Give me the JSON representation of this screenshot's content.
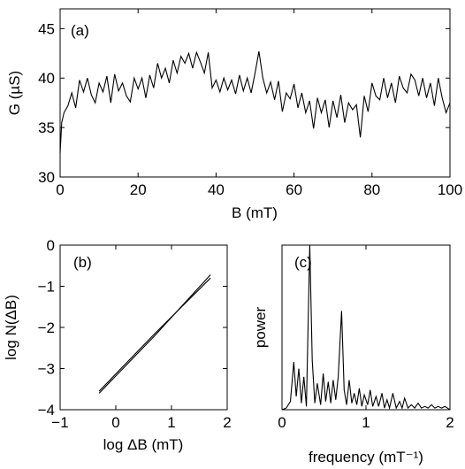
{
  "chart_data": [
    {
      "panel": "(a)",
      "type": "line",
      "xlabel": "B (mT)",
      "ylabel": "G (µS)",
      "xlim": [
        0,
        100
      ],
      "ylim": [
        30,
        47
      ],
      "xticks": [
        "0",
        "20",
        "40",
        "60",
        "80",
        "100"
      ],
      "yticks": [
        "30",
        "35",
        "40",
        "45"
      ],
      "grid": false,
      "series": [
        {
          "x": [
            0,
            0.4,
            1,
            2,
            3,
            4,
            5,
            6,
            7,
            8,
            9,
            10,
            11,
            12,
            13,
            14,
            15,
            16,
            17,
            18,
            19,
            20,
            21,
            22,
            23,
            24,
            25,
            26,
            27,
            28,
            29,
            30,
            31,
            32,
            33,
            34,
            35,
            36,
            37,
            38,
            39,
            40,
            41,
            42,
            43,
            44,
            45,
            46,
            47,
            48,
            49,
            50,
            51,
            52,
            53,
            54,
            55,
            56,
            57,
            58,
            59,
            60,
            61,
            62,
            63,
            64,
            65,
            66,
            67,
            68,
            69,
            70,
            71,
            72,
            73,
            74,
            75,
            76,
            77,
            78,
            79,
            80,
            81,
            82,
            83,
            84,
            85,
            86,
            87,
            88,
            89,
            90,
            91,
            92,
            93,
            94,
            95,
            96,
            97,
            98,
            99,
            100
          ],
          "y": [
            32.4,
            35.5,
            36.5,
            37.2,
            38.5,
            37.0,
            39.8,
            38.6,
            40.0,
            38.3,
            37.5,
            39.5,
            38.6,
            40.2,
            37.5,
            40.4,
            38.7,
            39.5,
            38.2,
            37.6,
            40.0,
            38.9,
            40.0,
            38.0,
            40.3,
            39.0,
            41.5,
            40.0,
            41.0,
            39.5,
            41.8,
            40.5,
            42.2,
            41.5,
            42.5,
            41.0,
            42.6,
            41.6,
            40.5,
            42.6,
            39.0,
            39.8,
            38.6,
            40.0,
            38.8,
            39.8,
            38.4,
            40.3,
            38.7,
            40.0,
            38.5,
            40.5,
            42.7,
            40.0,
            38.5,
            39.6,
            37.8,
            39.7,
            36.6,
            38.5,
            37.9,
            39.4,
            37.0,
            38.5,
            36.5,
            37.7,
            34.9,
            38.0,
            36.5,
            37.8,
            35.0,
            37.7,
            36.0,
            38.3,
            35.5,
            37.5,
            36.8,
            37.3,
            34.0,
            38.2,
            36.6,
            39.5,
            38.2,
            37.8,
            40.0,
            38.0,
            39.5,
            37.5,
            40.2,
            39.0,
            38.5,
            40.4,
            39.8,
            38.2,
            40.0,
            38.0,
            39.5,
            37.2,
            40.0,
            38.0,
            36.5,
            37.5
          ]
        }
      ]
    },
    {
      "panel": "(b)",
      "type": "line",
      "xlabel": "log ΔB (mT)",
      "ylabel": "log N(ΔB)",
      "xlim": [
        -1,
        2
      ],
      "ylim": [
        -4,
        0
      ],
      "xticks": [
        "−1",
        "0",
        "1",
        "2"
      ],
      "yticks": [
        "−4",
        "−3",
        "−2",
        "−1",
        "0"
      ],
      "grid": false,
      "series": [
        {
          "x": [
            -0.3,
            0.7,
            1.7
          ],
          "y": [
            -3.6,
            -2.2,
            -0.72
          ]
        },
        {
          "x": [
            -0.3,
            0.7,
            1.7
          ],
          "y": [
            -3.55,
            -2.15,
            -0.8
          ]
        }
      ]
    },
    {
      "panel": "(c)",
      "type": "line",
      "xlabel": "frequency (mT⁻¹)",
      "ylabel": "power",
      "xlim": [
        0,
        2
      ],
      "ylim": [
        0,
        1
      ],
      "xticks": [
        "0",
        "1",
        "2"
      ],
      "yticks": [],
      "grid": false,
      "series": [
        {
          "x": [
            0,
            0.05,
            0.1,
            0.14,
            0.17,
            0.2,
            0.23,
            0.26,
            0.29,
            0.33,
            0.36,
            0.39,
            0.42,
            0.46,
            0.49,
            0.52,
            0.55,
            0.58,
            0.61,
            0.64,
            0.67,
            0.71,
            0.74,
            0.77,
            0.8,
            0.83,
            0.86,
            0.89,
            0.92,
            0.95,
            0.98,
            1.02,
            1.05,
            1.08,
            1.12,
            1.15,
            1.19,
            1.22,
            1.25,
            1.28,
            1.32,
            1.36,
            1.4,
            1.43,
            1.46,
            1.5,
            1.54,
            1.58,
            1.62,
            1.66,
            1.7,
            1.74,
            1.78,
            1.82,
            1.86,
            1.9,
            1.94,
            2.0
          ],
          "y": [
            0,
            0.01,
            0.05,
            0.29,
            0.08,
            0.25,
            0.04,
            0.2,
            0.02,
            1.0,
            0.3,
            0.04,
            0.16,
            0.03,
            0.22,
            0.05,
            0.17,
            0.04,
            0.18,
            0.06,
            0.2,
            0.6,
            0.12,
            0.03,
            0.18,
            0.04,
            0.1,
            0.03,
            0.13,
            0.02,
            0.09,
            0.03,
            0.12,
            0.02,
            0.08,
            0.02,
            0.1,
            0.01,
            0.06,
            0.01,
            0.1,
            0.01,
            0.05,
            0.01,
            0.07,
            0.01,
            0.03,
            0.01,
            0.04,
            0.01,
            0.02,
            0.01,
            0.03,
            0.01,
            0.02,
            0.01,
            0.02,
            0.0
          ]
        }
      ]
    }
  ]
}
